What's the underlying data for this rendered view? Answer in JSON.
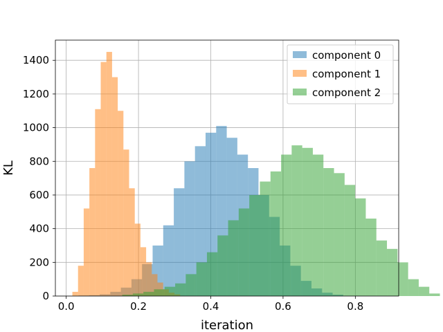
{
  "chart_data": {
    "type": "bar",
    "subtype": "overlapping-histogram",
    "xlabel": "iteration",
    "ylabel": "KL",
    "xlim": [
      -0.03,
      0.92
    ],
    "ylim": [
      0,
      1520
    ],
    "xticks": [
      0.0,
      0.2,
      0.4,
      0.6,
      0.8
    ],
    "xtick_labels": [
      "0.0",
      "0.2",
      "0.4",
      "0.6",
      "0.8"
    ],
    "yticks": [
      0,
      200,
      400,
      600,
      800,
      1000,
      1200,
      1400
    ],
    "ytick_labels": [
      "0",
      "200",
      "400",
      "600",
      "800",
      "1000",
      "1200",
      "1400"
    ],
    "grid": true,
    "legend_position": "top-right",
    "series": [
      {
        "name": "component 0",
        "color": "#1f77b4",
        "opacity": 0.5,
        "x_start": 0.034,
        "bin_width": 0.0293,
        "counts": [
          3,
          5,
          10,
          25,
          50,
          100,
          190,
          300,
          420,
          640,
          800,
          890,
          970,
          1010,
          940,
          840,
          760,
          600,
          470,
          300,
          180,
          90,
          45,
          20,
          8
        ]
      },
      {
        "name": "component 1",
        "color": "#ff7f0e",
        "opacity": 0.5,
        "x_start": 0.017,
        "bin_width": 0.0157,
        "counts": [
          25,
          180,
          520,
          760,
          1110,
          1390,
          1450,
          1300,
          1100,
          870,
          640,
          430,
          290,
          200,
          130,
          80,
          40,
          20,
          10
        ]
      },
      {
        "name": "component 2",
        "color": "#2ca02c",
        "opacity": 0.5,
        "x_start": 0.155,
        "bin_width": 0.0293,
        "counts": [
          8,
          15,
          25,
          40,
          55,
          75,
          130,
          200,
          260,
          360,
          450,
          520,
          600,
          680,
          740,
          840,
          895,
          880,
          840,
          760,
          730,
          660,
          580,
          460,
          330,
          280,
          200,
          100,
          55,
          15
        ]
      }
    ]
  }
}
